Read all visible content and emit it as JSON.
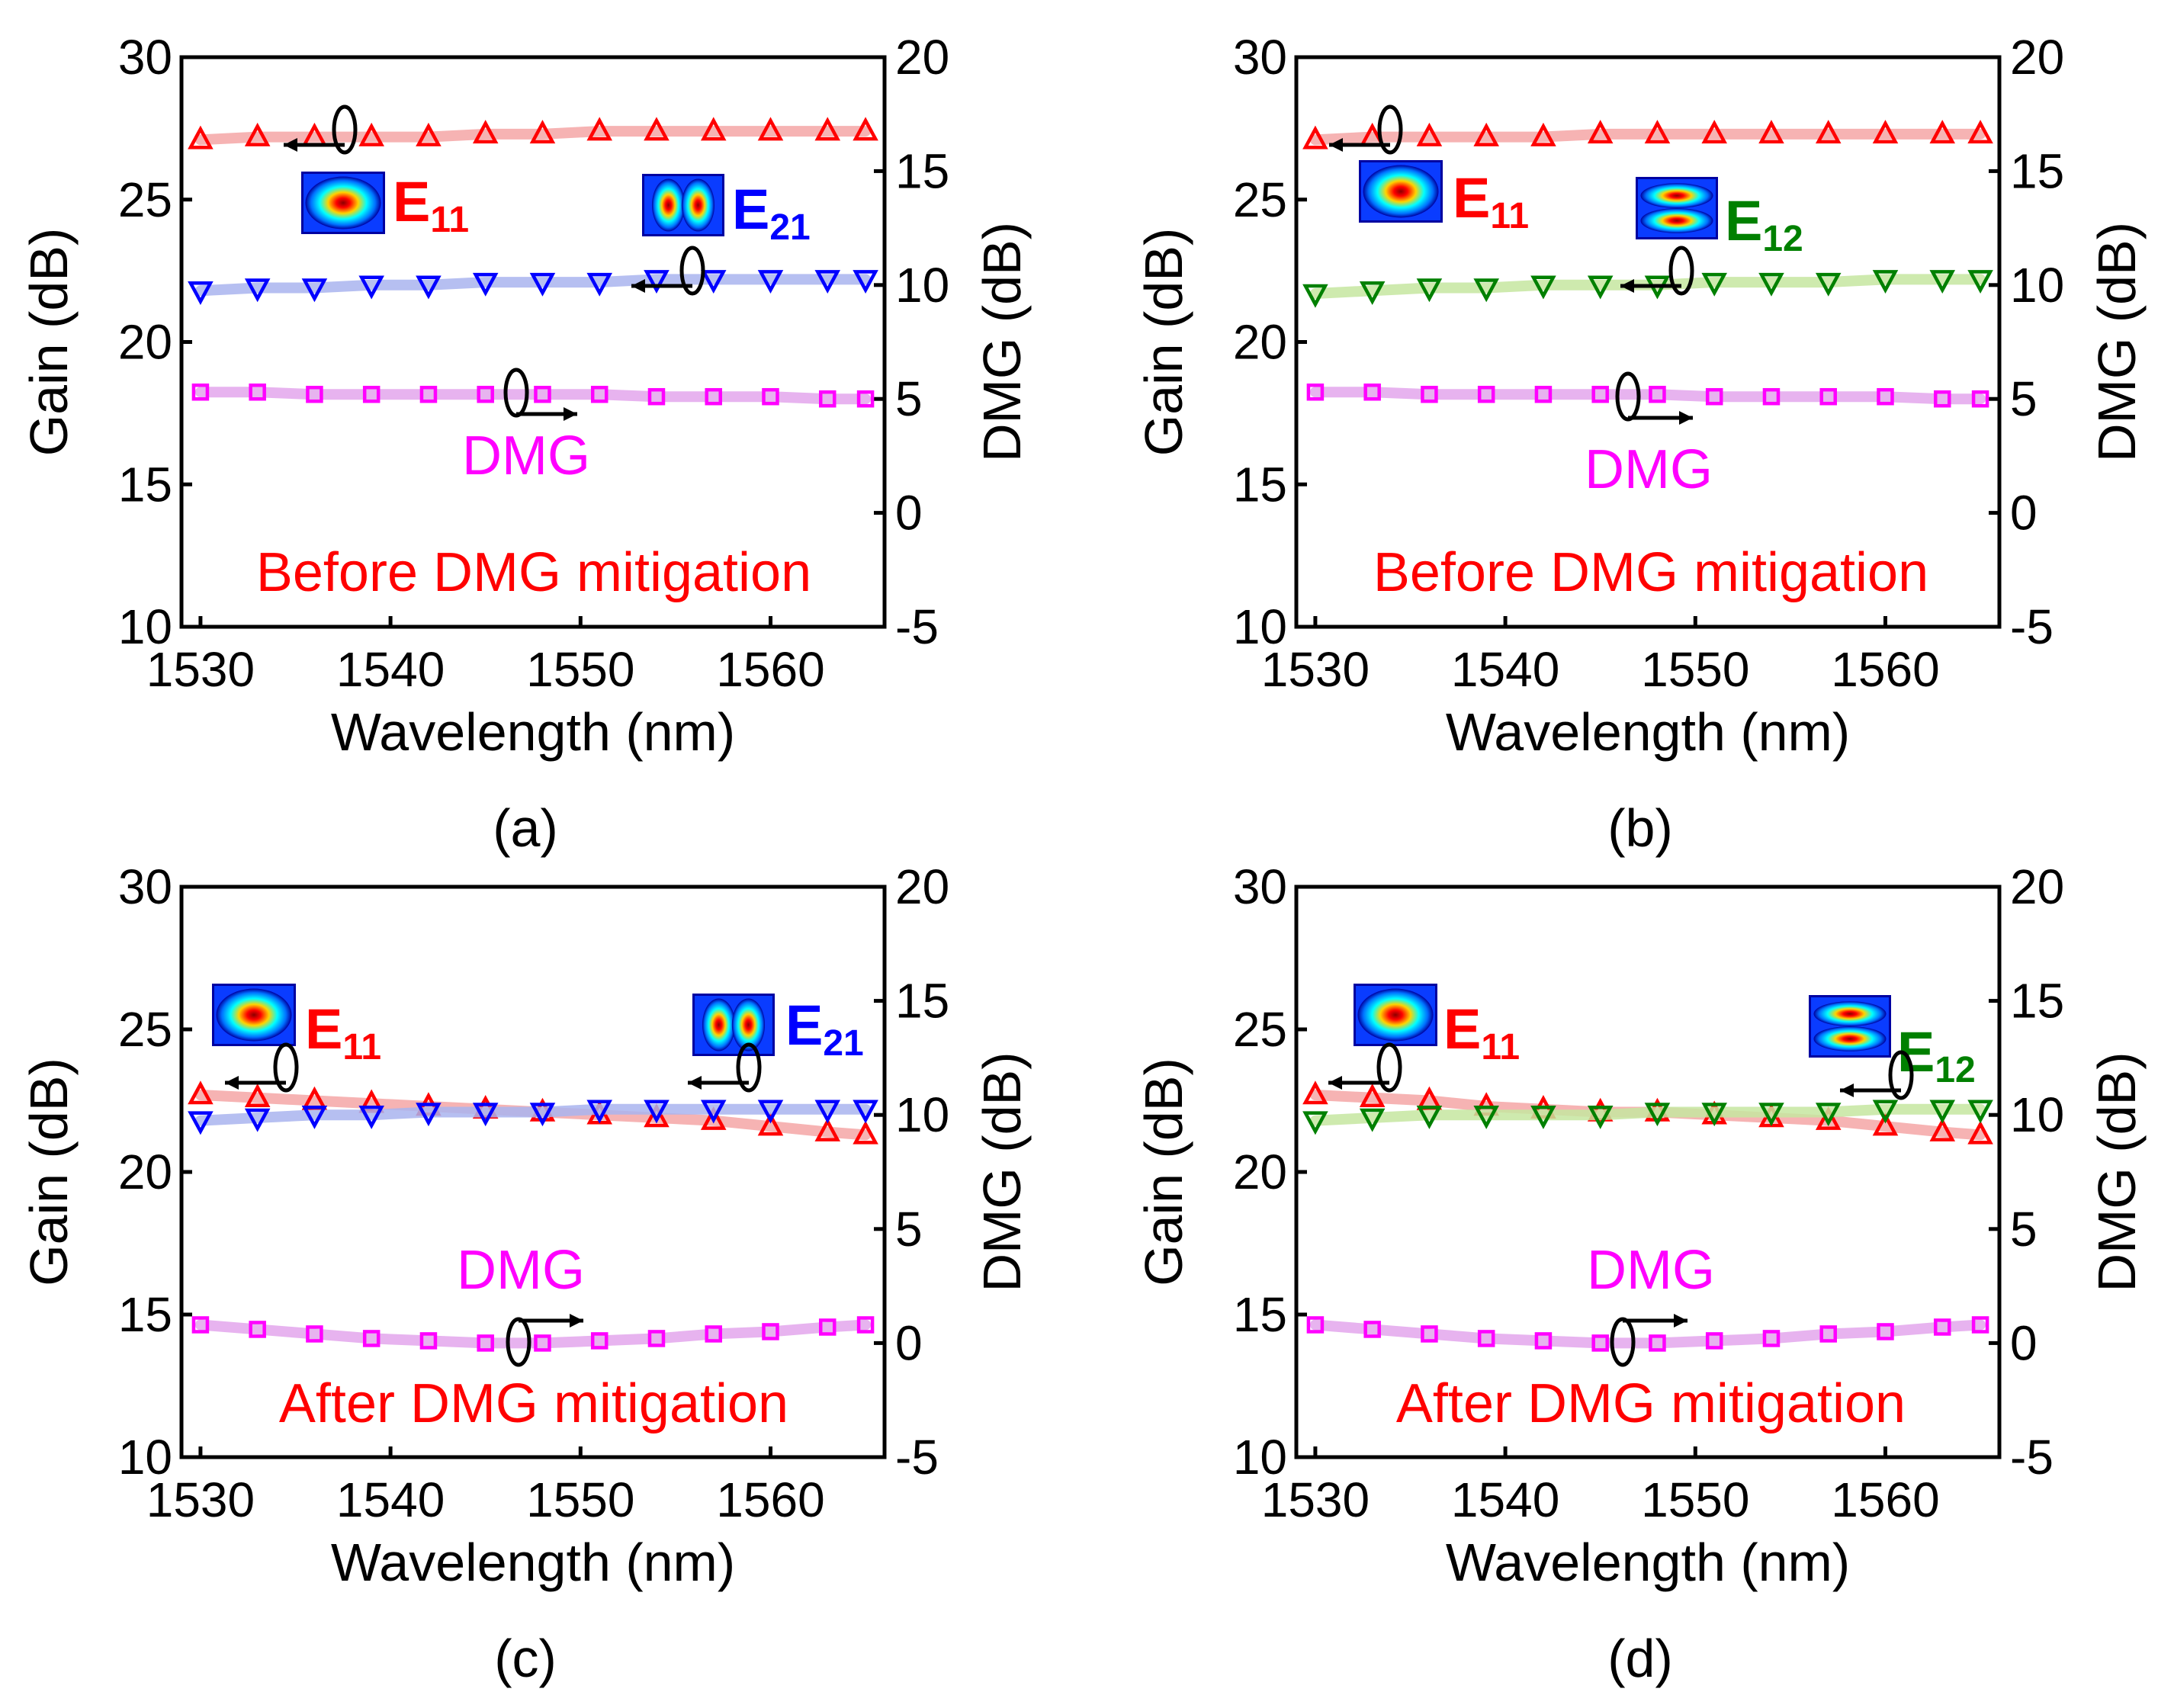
{
  "figure": {
    "caption_labels": [
      "(a)",
      "(b)",
      "(c)",
      "(d)"
    ]
  },
  "colors": {
    "e11": "#ff0000",
    "e21": "#0000ff",
    "e12": "#008000",
    "dmg": "#ff00ff",
    "e11_fit": "#f4a6a6",
    "e21_fit": "#a9b4ee",
    "e12_fit": "#c6e6a0",
    "dmg_fit": "#e3a6ec",
    "axis": "#000000"
  },
  "chart_data": [
    {
      "type": "scatter",
      "panel_label": "(a)",
      "annotation": "Before DMG mitigation",
      "xlabel": "Wavelength (nm)",
      "ylabel": "Gain (dB)",
      "y2label": "DMG (dB)",
      "xlim": [
        1529,
        1566
      ],
      "ylim": [
        10,
        30
      ],
      "y2lim": [
        -5,
        20
      ],
      "xticks": [
        1530,
        1540,
        1550,
        1560
      ],
      "yticks": [
        10,
        15,
        20,
        25,
        30
      ],
      "y2ticks": [
        -5,
        0,
        5,
        10,
        15,
        20
      ],
      "x": [
        1530,
        1533,
        1536,
        1539,
        1542,
        1545,
        1548,
        1551,
        1554,
        1557,
        1560,
        1563,
        1565
      ],
      "series": [
        {
          "name": "E11",
          "base": "E",
          "sub": "11",
          "marker": "triangle-up",
          "axis": "left",
          "color_key": "e11",
          "values": [
            27.1,
            27.2,
            27.2,
            27.2,
            27.2,
            27.3,
            27.3,
            27.4,
            27.4,
            27.4,
            27.4,
            27.4,
            27.4
          ]
        },
        {
          "name": "E21",
          "base": "E",
          "sub": "21",
          "marker": "triangle-down",
          "axis": "left",
          "color_key": "e21",
          "values": [
            21.8,
            21.9,
            21.9,
            22.0,
            22.0,
            22.1,
            22.1,
            22.1,
            22.2,
            22.2,
            22.2,
            22.2,
            22.2
          ]
        },
        {
          "name": "DMG",
          "base": "DMG",
          "sub": "",
          "marker": "square",
          "axis": "right",
          "color_key": "dmg",
          "values": [
            5.3,
            5.3,
            5.2,
            5.2,
            5.2,
            5.2,
            5.2,
            5.2,
            5.1,
            5.1,
            5.1,
            5.0,
            5.0
          ]
        }
      ]
    },
    {
      "type": "scatter",
      "panel_label": "(b)",
      "annotation": "Before DMG mitigation",
      "xlabel": "Wavelength (nm)",
      "ylabel": "Gain (dB)",
      "y2label": "DMG (dB)",
      "xlim": [
        1529,
        1566
      ],
      "ylim": [
        10,
        30
      ],
      "y2lim": [
        -5,
        20
      ],
      "xticks": [
        1530,
        1540,
        1550,
        1560
      ],
      "yticks": [
        10,
        15,
        20,
        25,
        30
      ],
      "y2ticks": [
        -5,
        0,
        5,
        10,
        15,
        20
      ],
      "x": [
        1530,
        1533,
        1536,
        1539,
        1542,
        1545,
        1548,
        1551,
        1554,
        1557,
        1560,
        1563,
        1565
      ],
      "series": [
        {
          "name": "E11",
          "base": "E",
          "sub": "11",
          "marker": "triangle-up",
          "axis": "left",
          "color_key": "e11",
          "values": [
            27.1,
            27.2,
            27.2,
            27.2,
            27.2,
            27.3,
            27.3,
            27.3,
            27.3,
            27.3,
            27.3,
            27.3,
            27.3
          ]
        },
        {
          "name": "E12",
          "base": "E",
          "sub": "12",
          "marker": "triangle-down",
          "axis": "left",
          "color_key": "e12",
          "values": [
            21.7,
            21.8,
            21.9,
            21.9,
            22.0,
            22.0,
            22.0,
            22.1,
            22.1,
            22.1,
            22.2,
            22.2,
            22.2
          ]
        },
        {
          "name": "DMG",
          "base": "DMG",
          "sub": "",
          "marker": "square",
          "axis": "right",
          "color_key": "dmg",
          "values": [
            5.3,
            5.3,
            5.2,
            5.2,
            5.2,
            5.2,
            5.2,
            5.1,
            5.1,
            5.1,
            5.1,
            5.0,
            5.0
          ]
        }
      ]
    },
    {
      "type": "scatter",
      "panel_label": "(c)",
      "annotation": "After DMG mitigation",
      "xlabel": "Wavelength (nm)",
      "ylabel": "Gain (dB)",
      "y2label": "DMG (dB)",
      "xlim": [
        1529,
        1566
      ],
      "ylim": [
        10,
        30
      ],
      "y2lim": [
        -5,
        20
      ],
      "xticks": [
        1530,
        1540,
        1550,
        1560
      ],
      "yticks": [
        10,
        15,
        20,
        25,
        30
      ],
      "y2ticks": [
        -5,
        0,
        5,
        10,
        15,
        20
      ],
      "x": [
        1530,
        1533,
        1536,
        1539,
        1542,
        1545,
        1548,
        1551,
        1554,
        1557,
        1560,
        1563,
        1565
      ],
      "series": [
        {
          "name": "E11",
          "base": "E",
          "sub": "11",
          "marker": "triangle-up",
          "axis": "left",
          "color_key": "e11",
          "values": [
            22.7,
            22.6,
            22.5,
            22.4,
            22.3,
            22.2,
            22.1,
            22.0,
            21.9,
            21.8,
            21.6,
            21.4,
            21.3
          ]
        },
        {
          "name": "E21",
          "base": "E",
          "sub": "21",
          "marker": "triangle-down",
          "axis": "left",
          "color_key": "e21",
          "values": [
            21.8,
            21.9,
            22.0,
            22.0,
            22.1,
            22.1,
            22.1,
            22.2,
            22.2,
            22.2,
            22.2,
            22.2,
            22.2
          ]
        },
        {
          "name": "DMG",
          "base": "DMG",
          "sub": "",
          "marker": "square",
          "axis": "right",
          "color_key": "dmg",
          "values": [
            0.8,
            0.6,
            0.4,
            0.2,
            0.1,
            0.0,
            0.0,
            0.1,
            0.2,
            0.4,
            0.5,
            0.7,
            0.8
          ]
        }
      ]
    },
    {
      "type": "scatter",
      "panel_label": "(d)",
      "annotation": "After DMG mitigation",
      "xlabel": "Wavelength (nm)",
      "ylabel": "Gain (dB)",
      "y2label": "DMG (dB)",
      "xlim": [
        1529,
        1566
      ],
      "ylim": [
        10,
        30
      ],
      "y2lim": [
        -5,
        20
      ],
      "xticks": [
        1530,
        1540,
        1550,
        1560
      ],
      "yticks": [
        10,
        15,
        20,
        25,
        30
      ],
      "y2ticks": [
        -5,
        0,
        5,
        10,
        15,
        20
      ],
      "x": [
        1530,
        1533,
        1536,
        1539,
        1542,
        1545,
        1548,
        1551,
        1554,
        1557,
        1560,
        1563,
        1565
      ],
      "series": [
        {
          "name": "E11",
          "base": "E",
          "sub": "11",
          "marker": "triangle-up",
          "axis": "left",
          "color_key": "e11",
          "values": [
            22.7,
            22.6,
            22.5,
            22.3,
            22.2,
            22.1,
            22.1,
            22.0,
            21.9,
            21.8,
            21.6,
            21.4,
            21.3
          ]
        },
        {
          "name": "E12",
          "base": "E",
          "sub": "12",
          "marker": "triangle-down",
          "axis": "left",
          "color_key": "e12",
          "values": [
            21.8,
            21.9,
            22.0,
            22.0,
            22.0,
            22.0,
            22.1,
            22.1,
            22.1,
            22.1,
            22.2,
            22.2,
            22.2
          ]
        },
        {
          "name": "DMG",
          "base": "DMG",
          "sub": "",
          "marker": "square",
          "axis": "right",
          "color_key": "dmg",
          "values": [
            0.8,
            0.6,
            0.4,
            0.2,
            0.1,
            0.0,
            0.0,
            0.1,
            0.2,
            0.4,
            0.5,
            0.7,
            0.8
          ]
        }
      ]
    }
  ]
}
